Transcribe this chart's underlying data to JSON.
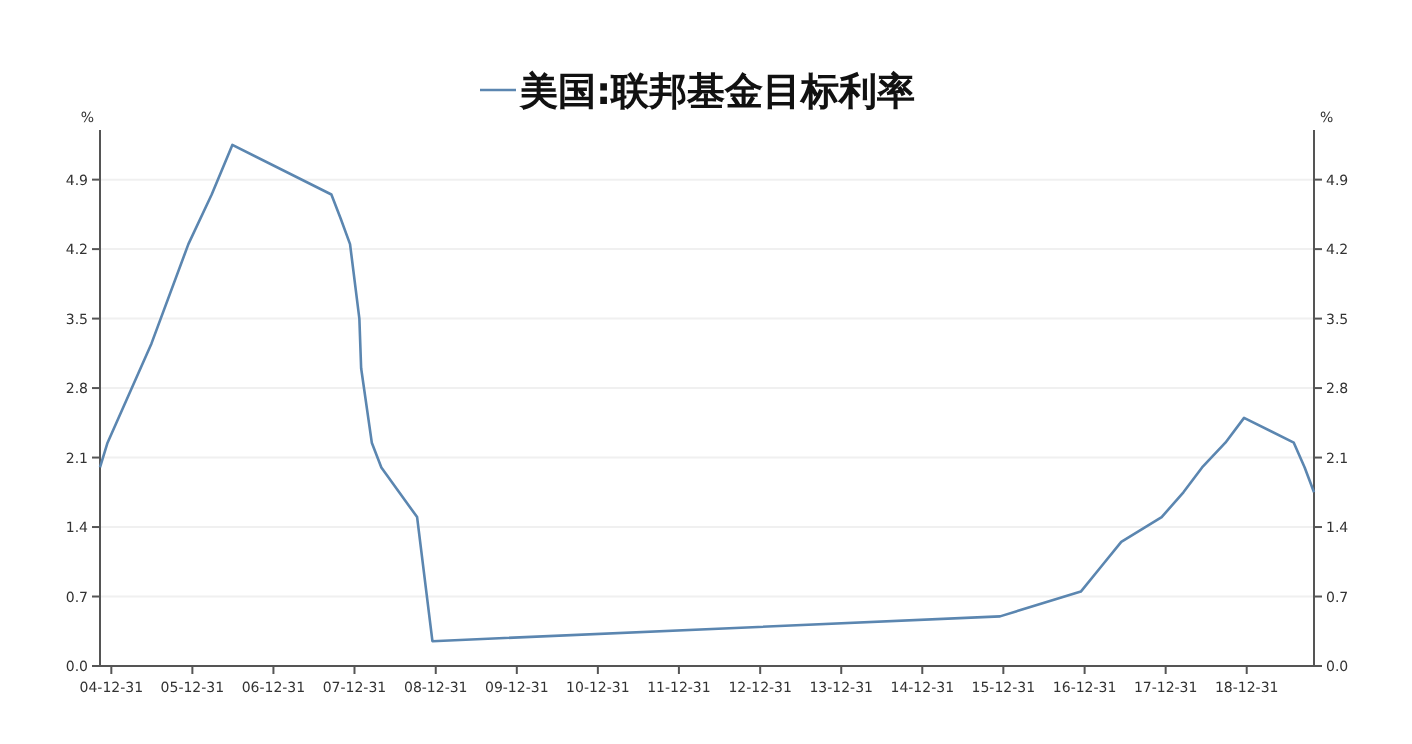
{
  "chart_data": {
    "type": "line",
    "ylabel": "%",
    "y2label": "%",
    "legend": "top",
    "grid": "y",
    "marker": "none",
    "line_style": "solid",
    "x": [
      "2004-11-10",
      "2004-12-14",
      "2005-06-30",
      "2005-12-13",
      "2006-03-28",
      "2006-06-29",
      "2007-09-18",
      "2007-10-31",
      "2007-12-11",
      "2008-01-22",
      "2008-01-30",
      "2008-03-18",
      "2008-04-30",
      "2008-10-08",
      "2008-12-16",
      "2015-12-16",
      "2016-12-14",
      "2017-03-15",
      "2017-06-14",
      "2017-12-13",
      "2018-03-21",
      "2018-06-13",
      "2018-09-26",
      "2018-12-19",
      "2019-07-31",
      "2019-09-18",
      "2019-10-30"
    ],
    "series": [
      {
        "name": "美国:联邦基金目标利率",
        "color": "#5b86b0",
        "values": [
          2.0,
          2.25,
          3.25,
          4.25,
          4.75,
          5.25,
          4.75,
          4.5,
          4.25,
          3.5,
          3.0,
          2.25,
          2.0,
          1.5,
          0.25,
          0.5,
          0.75,
          1.0,
          1.25,
          1.5,
          1.75,
          2.0,
          2.25,
          2.5,
          2.25,
          2.0,
          1.75
        ]
      }
    ],
    "xlim": [
      "2004-11-10",
      "2019-10-30"
    ],
    "xticks": [
      {
        "value": "2004-12-31",
        "label": "04-12-31"
      },
      {
        "value": "2005-12-31",
        "label": "05-12-31"
      },
      {
        "value": "2006-12-31",
        "label": "06-12-31"
      },
      {
        "value": "2007-12-31",
        "label": "07-12-31"
      },
      {
        "value": "2008-12-31",
        "label": "08-12-31"
      },
      {
        "value": "2009-12-31",
        "label": "09-12-31"
      },
      {
        "value": "2010-12-31",
        "label": "10-12-31"
      },
      {
        "value": "2011-12-31",
        "label": "11-12-31"
      },
      {
        "value": "2012-12-31",
        "label": "12-12-31"
      },
      {
        "value": "2013-12-31",
        "label": "13-12-31"
      },
      {
        "value": "2014-12-31",
        "label": "14-12-31"
      },
      {
        "value": "2015-12-31",
        "label": "15-12-31"
      },
      {
        "value": "2016-12-31",
        "label": "16-12-31"
      },
      {
        "value": "2017-12-31",
        "label": "17-12-31"
      },
      {
        "value": "2018-12-31",
        "label": "18-12-31"
      }
    ],
    "ylim": [
      0,
      5.4
    ],
    "yticks": [
      {
        "value": 0,
        "label": "0.0"
      },
      0.7,
      1.4,
      2.1,
      2.8,
      3.5,
      4.2,
      4.9
    ],
    "y2lim": [
      0,
      5.4
    ],
    "y2ticks": [
      {
        "value": 0,
        "label": "0.0"
      },
      0.7,
      1.4,
      2.1,
      2.8,
      3.5,
      4.2,
      4.9
    ]
  }
}
